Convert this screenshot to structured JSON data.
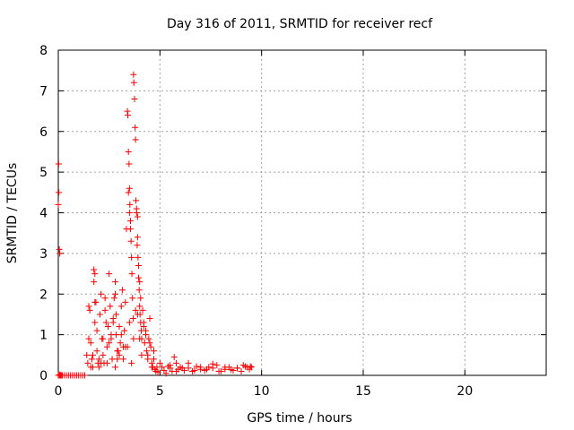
{
  "chart_data": {
    "type": "scatter",
    "title": "Day 316 of 2011, SRMTID for receiver recf",
    "xlabel": "GPS time / hours",
    "ylabel": "SRMTID / TECUs",
    "xlim": [
      0,
      24
    ],
    "ylim": [
      0,
      8
    ],
    "xticks": [
      0,
      5,
      10,
      15,
      20
    ],
    "yticks": [
      0,
      1,
      2,
      3,
      4,
      5,
      6,
      7,
      8
    ],
    "grid": true,
    "marker": "+",
    "series": [
      {
        "name": "SRMTID",
        "color": "#ff0000",
        "x": [
          0.0,
          0.02,
          0.03,
          0.05,
          0.07,
          0.08,
          0.1,
          0.12,
          0.2,
          0.3,
          0.4,
          0.5,
          0.6,
          0.7,
          0.8,
          0.9,
          1.0,
          1.1,
          1.2,
          1.3,
          1.4,
          1.45,
          1.5,
          1.55,
          1.6,
          1.65,
          1.7,
          1.75,
          1.8,
          1.85,
          1.9,
          1.95,
          2.0,
          2.05,
          2.1,
          2.15,
          2.2,
          2.25,
          2.3,
          2.35,
          2.4,
          2.45,
          2.5,
          2.55,
          2.6,
          2.65,
          2.7,
          2.75,
          2.8,
          2.85,
          2.9,
          2.95,
          3.0,
          3.05,
          3.1,
          3.15,
          3.2,
          3.25,
          3.3,
          3.35,
          3.4,
          3.42,
          3.45,
          3.48,
          3.5,
          3.52,
          3.55,
          3.58,
          3.6,
          3.62,
          3.65,
          3.68,
          3.7,
          3.72,
          3.75,
          3.78,
          3.8,
          3.82,
          3.85,
          3.88,
          3.9,
          3.92,
          3.95,
          3.98,
          4.0,
          4.02,
          4.05,
          4.08,
          4.1,
          4.15,
          4.2,
          4.25,
          4.3,
          4.35,
          4.4,
          4.45,
          4.5,
          4.55,
          4.6,
          4.65,
          4.7,
          4.75,
          4.8,
          4.85,
          4.9,
          5.0,
          5.1,
          5.2,
          5.3,
          5.4,
          5.5,
          5.6,
          5.7,
          5.8,
          5.9,
          6.0,
          6.2,
          6.4,
          6.6,
          6.8,
          7.0,
          7.2,
          7.4,
          7.6,
          7.8,
          8.0,
          8.2,
          8.4,
          8.6,
          8.8,
          9.0,
          9.2,
          9.4,
          9.5,
          1.5,
          1.7,
          1.9,
          2.1,
          2.3,
          2.5,
          2.7,
          2.9,
          3.1,
          3.3,
          3.5,
          3.7,
          3.9,
          4.1,
          4.3,
          4.5,
          4.7,
          1.6,
          1.8,
          2.0,
          2.2,
          2.4,
          2.6,
          2.8,
          3.0,
          3.2,
          3.4,
          3.6,
          3.8,
          4.0,
          4.2,
          4.4,
          4.6,
          0.0,
          0.05,
          0.1,
          0.15,
          1.75,
          1.8,
          2.8,
          2.85,
          3.45,
          3.5,
          3.55,
          3.85,
          3.9,
          3.95,
          4.0,
          4.05,
          5.5,
          5.8,
          6.1,
          6.4,
          6.7,
          7.0,
          7.3,
          7.6,
          7.9,
          8.2,
          8.5,
          8.8,
          9.1,
          9.3,
          9.45
        ],
        "y": [
          4.2,
          5.2,
          4.5,
          3.1,
          3.0,
          0.02,
          0.0,
          0.0,
          0.0,
          0.0,
          0.0,
          0.0,
          0.0,
          0.0,
          0.0,
          0.0,
          0.0,
          0.0,
          0.0,
          0.0,
          0.5,
          0.3,
          1.7,
          1.6,
          0.8,
          0.4,
          0.2,
          2.3,
          2.5,
          1.8,
          0.6,
          0.3,
          0.2,
          1.5,
          2.0,
          0.9,
          0.5,
          0.3,
          1.9,
          1.3,
          0.7,
          1.2,
          2.5,
          1.7,
          0.9,
          0.4,
          1.3,
          1.9,
          2.3,
          1.0,
          0.4,
          0.6,
          1.2,
          0.8,
          1.7,
          2.1,
          0.7,
          1.1,
          1.8,
          3.6,
          6.5,
          6.4,
          5.5,
          5.2,
          4.6,
          4.2,
          3.8,
          3.3,
          2.9,
          2.5,
          1.9,
          1.4,
          7.4,
          7.2,
          6.8,
          6.1,
          5.8,
          4.3,
          4.0,
          3.2,
          3.4,
          2.9,
          2.4,
          2.1,
          1.7,
          1.5,
          1.3,
          1.1,
          0.9,
          1.6,
          1.2,
          0.8,
          1.0,
          0.6,
          0.5,
          0.9,
          1.4,
          0.7,
          0.3,
          0.2,
          0.4,
          0.15,
          0.1,
          0.2,
          0.08,
          0.3,
          0.2,
          0.12,
          0.05,
          0.22,
          0.18,
          0.1,
          0.45,
          0.3,
          0.15,
          0.2,
          0.12,
          0.18,
          0.1,
          0.22,
          0.15,
          0.12,
          0.2,
          0.18,
          0.25,
          0.1,
          0.15,
          0.2,
          0.12,
          0.18,
          0.1,
          0.22,
          0.15,
          0.2,
          0.9,
          0.5,
          1.1,
          0.3,
          1.6,
          0.8,
          1.4,
          0.6,
          1.0,
          0.7,
          1.3,
          0.9,
          1.5,
          0.5,
          1.1,
          0.8,
          0.6,
          0.2,
          1.3,
          0.4,
          0.9,
          0.3,
          1.0,
          0.2,
          0.5,
          0.4,
          0.7,
          0.3,
          1.6,
          0.9,
          1.3,
          0.4,
          0.2,
          0.0,
          0.0,
          0.0,
          0.0,
          2.6,
          1.8,
          2.0,
          1.5,
          4.5,
          4.0,
          3.6,
          4.1,
          3.9,
          2.7,
          2.3,
          1.9,
          0.25,
          0.1,
          0.18,
          0.3,
          0.12,
          0.2,
          0.15,
          0.28,
          0.1,
          0.2,
          0.14,
          0.18,
          0.25,
          0.2,
          0.22
        ]
      }
    ]
  }
}
